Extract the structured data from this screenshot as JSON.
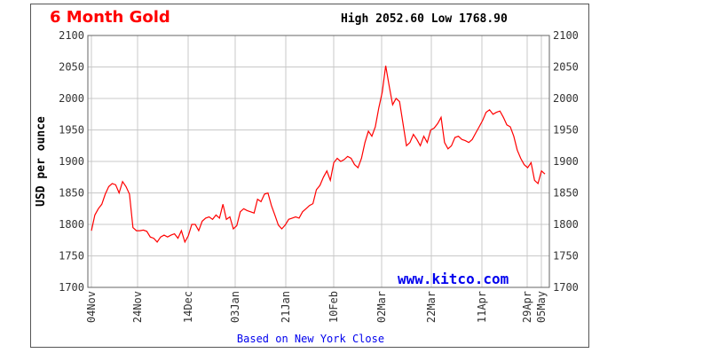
{
  "chart_data": {
    "type": "line",
    "title": "6 Month Gold",
    "high_label": "High 2052.60 Low 1768.90",
    "ylabel": "USD per ounce",
    "brand": "www.kitco.com",
    "footer": "Based on New York Close",
    "ylim": [
      1700,
      2100
    ],
    "yticks": [
      1700,
      1750,
      1800,
      1850,
      1900,
      1950,
      2000,
      2050,
      2100
    ],
    "grid": true,
    "x_range": [
      "04Nov",
      "05May"
    ],
    "xticks": [
      "04Nov",
      "24Nov",
      "14Dec",
      "03Jan",
      "21Jan",
      "10Feb",
      "02Mar",
      "22Mar",
      "11Apr",
      "29Apr",
      "05May"
    ],
    "colors": {
      "title": "#ff0000",
      "line": "#ff0000",
      "brand": "#0000ee",
      "footer": "#0000ee",
      "grid": "#c8c8c8"
    },
    "series": [
      {
        "values": [
          1790,
          1815,
          1825,
          1832,
          1848,
          1860,
          1865,
          1863,
          1850,
          1868,
          1860,
          1848,
          1795,
          1790,
          1790,
          1791,
          1789,
          1780,
          1778,
          1772,
          1780,
          1783,
          1780,
          1783,
          1785,
          1778,
          1790,
          1772,
          1782,
          1800,
          1800,
          1790,
          1805,
          1810,
          1812,
          1808,
          1815,
          1810,
          1832,
          1808,
          1812,
          1793,
          1798,
          1820,
          1825,
          1822,
          1820,
          1818,
          1840,
          1836,
          1848,
          1850,
          1830,
          1815,
          1799,
          1793,
          1799,
          1808,
          1810,
          1812,
          1810,
          1820,
          1825,
          1830,
          1833,
          1855,
          1862,
          1875,
          1885,
          1870,
          1898,
          1905,
          1900,
          1903,
          1908,
          1905,
          1895,
          1890,
          1905,
          1930,
          1948,
          1940,
          1955,
          1985,
          2010,
          2052,
          2020,
          1990,
          2000,
          1995,
          1960,
          1925,
          1930,
          1943,
          1935,
          1925,
          1940,
          1930,
          1950,
          1953,
          1960,
          1970,
          1930,
          1920,
          1925,
          1938,
          1940,
          1935,
          1933,
          1930,
          1935,
          1945,
          1955,
          1965,
          1978,
          1982,
          1975,
          1978,
          1980,
          1970,
          1958,
          1955,
          1940,
          1918,
          1905,
          1895,
          1890,
          1898,
          1870,
          1865,
          1885,
          1880
        ]
      }
    ]
  }
}
